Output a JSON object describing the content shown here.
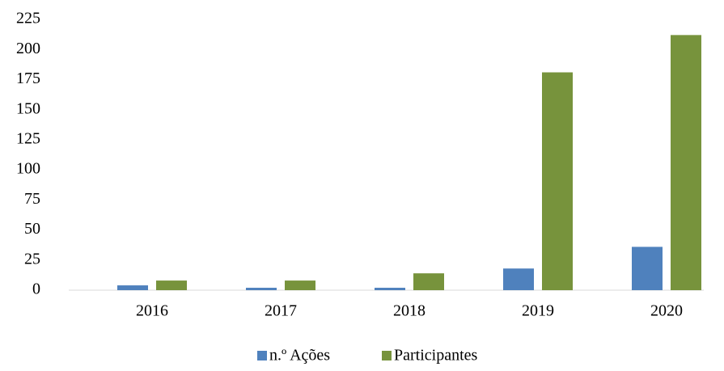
{
  "chart_data": {
    "type": "bar",
    "categories": [
      "2016",
      "2017",
      "2018",
      "2019",
      "2020"
    ],
    "series": [
      {
        "name": "n.º Ações",
        "color": "#4f81bd",
        "values": [
          4,
          2,
          2,
          18,
          36
        ]
      },
      {
        "name": "Participantes",
        "color": "#77933c",
        "values": [
          8,
          8,
          14,
          181,
          212
        ]
      }
    ],
    "ylim": [
      0,
      225
    ],
    "yticks": [
      0,
      25,
      50,
      75,
      100,
      125,
      150,
      175,
      200,
      225
    ],
    "grid": false,
    "legend": "bottom"
  }
}
